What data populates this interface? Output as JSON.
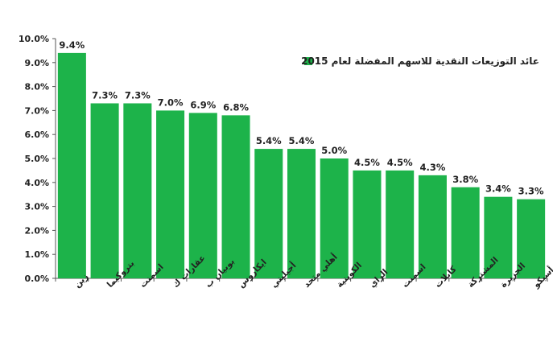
{
  "chart_data": {
    "type": "bar",
    "title": "",
    "xlabel": "",
    "ylabel": "",
    "ylim": [
      0,
      10
    ],
    "y_tick_values": [
      0,
      1,
      2,
      3,
      4,
      5,
      6,
      7,
      8,
      9,
      10
    ],
    "y_tick_labels": [
      "0.0%",
      "1.0%",
      "2.0%",
      "3.0%",
      "4.0%",
      "5.0%",
      "6.0%",
      "7.0%",
      "8.0%",
      "9.0%",
      "10.0%"
    ],
    "categories": [
      "زين",
      "بتروكيما",
      "اسمنت",
      "عقارات ك",
      "بوبيان ب",
      "ايكاروس",
      "أجيليتي",
      "أهلي متحد",
      "الكويتية",
      "الراي",
      "اسمنت",
      "كابلات",
      "المشتركة",
      "الجزيرة",
      "أسيكو"
    ],
    "series": [
      {
        "name": "عائد التوزيعات النقدية للاسهم المفضلة لعام 2015",
        "values": [
          9.4,
          7.3,
          7.3,
          7.0,
          6.9,
          6.8,
          5.4,
          5.4,
          5.0,
          4.5,
          4.5,
          4.3,
          3.8,
          3.4,
          3.3
        ],
        "value_labels": [
          "9.4%",
          "7.3%",
          "7.3%",
          "7.0%",
          "6.9%",
          "6.8%",
          "5.4%",
          "5.4%",
          "5.0%",
          "4.5%",
          "4.5%",
          "4.3%",
          "3.8%",
          "3.4%",
          "3.3%"
        ],
        "color": "#1db34a"
      }
    ],
    "legend": {
      "position": "top-right"
    },
    "grid": false
  }
}
